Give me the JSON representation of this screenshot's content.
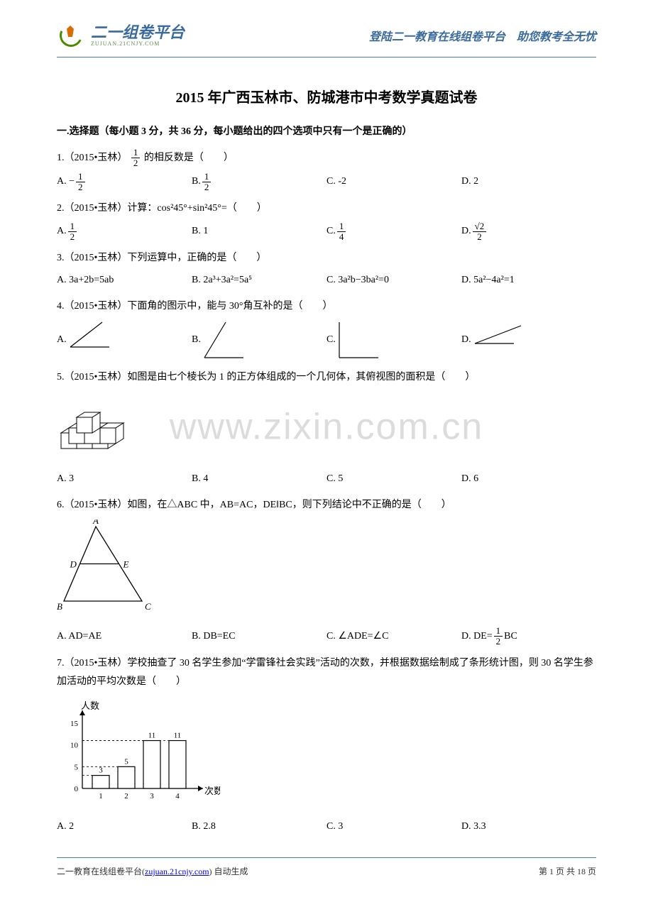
{
  "header": {
    "logo_text": "二一组卷平台",
    "logo_sub": "ZUJUAN.21CNJY.COM",
    "right_text": "登陆二一教育在线组卷平台　助您教考全无忧"
  },
  "title": "2015 年广西玉林市、防城港市中考数学真题试卷",
  "section1": "一.选择题（每小题 3 分，共 36 分，每小题给出的四个选项中只有一个是正确的）",
  "q1": {
    "stem_a": "1.（2015•玉林）",
    "stem_b": "的相反数是（　　）",
    "optA": "A. −",
    "optB": "B. ",
    "optC": "C. -2",
    "optD": "D. 2"
  },
  "q2": {
    "stem": "2.（2015•玉林）计算：cos²45°+sin²45°=（　　）",
    "optA": "A. ",
    "optB": "B. 1",
    "optC": "C. ",
    "optD": "D. "
  },
  "q3": {
    "stem": "3.（2015•玉林）下列运算中，正确的是（　　）",
    "optA": "A. 3a+2b=5ab",
    "optB": "B. 2a³+3a²=5a⁵",
    "optC": "C. 3a²b−3ba²=0",
    "optD": "D. 5a²−4a²=1"
  },
  "q4": {
    "stem": "4.（2015•玉林）下面角的图示中，能与 30°角互补的是（　　）",
    "svgA": {
      "lines": [
        [
          5,
          40,
          60,
          40
        ],
        [
          5,
          40,
          50,
          5
        ]
      ],
      "stroke": "#000"
    },
    "svgB": {
      "lines": [
        [
          5,
          55,
          60,
          55
        ],
        [
          5,
          55,
          35,
          5
        ]
      ],
      "stroke": "#000"
    },
    "svgC": {
      "lines": [
        [
          5,
          55,
          60,
          55
        ],
        [
          5,
          55,
          5,
          5
        ]
      ],
      "stroke": "#000"
    },
    "svgD": {
      "lines": [
        [
          5,
          35,
          60,
          35
        ],
        [
          5,
          35,
          70,
          10
        ]
      ],
      "stroke": "#000"
    }
  },
  "q5": {
    "stem": "5.（2015•玉林）如图是由七个棱长为 1 的正方体组成的一个几何体，其俯视图的面积是（　　）",
    "optA": "A. 3",
    "optB": "B. 4",
    "optC": "C. 5",
    "optD": "D. 6"
  },
  "q6": {
    "stem": "6.（2015•玉林）如图，在△ABC 中，AB=AC，DE‖BC，则下列结论中不正确的是（　　）",
    "optA": "A. AD=AE",
    "optB": "B. DB=EC",
    "optC": "C. ∠ADE=∠C",
    "optD_a": "D. DE=",
    "optD_b": "BC"
  },
  "q7": {
    "stem": "7.（2015•玉林）学校抽查了 30 名学生参加“学雷锋社会实践”活动的次数，并根据数据绘制成了条形统计图，则 30 名学生参加活动的平均次数是（　　）",
    "chart": {
      "ylabel": "人数",
      "xlabel": "次数",
      "yticks": [
        0,
        5,
        10,
        15
      ],
      "xticks": [
        1,
        2,
        3,
        4
      ],
      "values": [
        3,
        5,
        11,
        11
      ],
      "bar_color": "#ffffff",
      "bar_stroke": "#000",
      "axis_color": "#000"
    },
    "optA": "A. 2",
    "optB": "B. 2.8",
    "optC": "C. 3",
    "optD": "D. 3.3"
  },
  "watermark": "www.zixin.com.cn",
  "footer": {
    "left_a": "二一教育在线组卷平台(",
    "left_link": "zujuan.21cnjy.com",
    "left_b": ")  自动生成",
    "right": "第 1 页 共 18 页"
  },
  "frac_1_2": {
    "num": "1",
    "den": "2"
  },
  "frac_1_4": {
    "num": "1",
    "den": "4"
  },
  "frac_sqrt2_2": {
    "num": "√2",
    "den": "2"
  }
}
